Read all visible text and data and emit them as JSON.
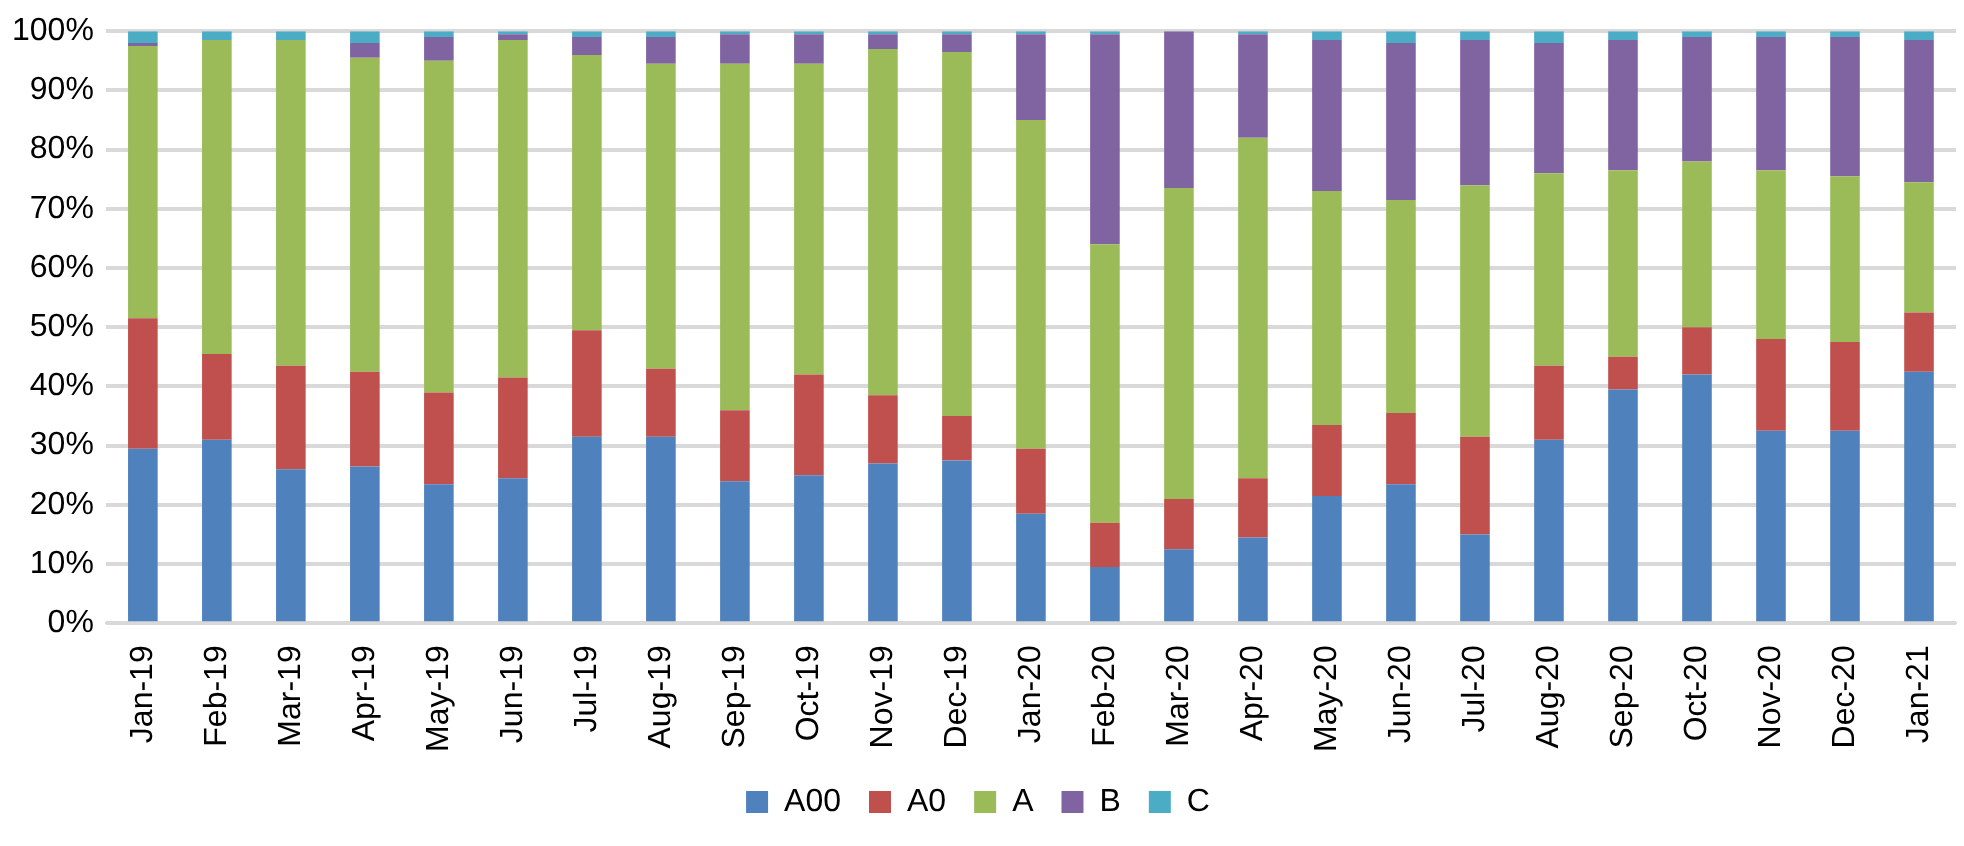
{
  "chart_data": {
    "type": "bar",
    "stacked": true,
    "categories": [
      "Jan-19",
      "Feb-19",
      "Mar-19",
      "Apr-19",
      "May-19",
      "Jun-19",
      "Jul-19",
      "Aug-19",
      "Sep-19",
      "Oct-19",
      "Nov-19",
      "Dec-19",
      "Jan-20",
      "Feb-20",
      "Mar-20",
      "Apr-20",
      "May-20",
      "Jun-20",
      "Jul-20",
      "Aug-20",
      "Sep-20",
      "Oct-20",
      "Nov-20",
      "Dec-20",
      "Jan-21"
    ],
    "series": [
      {
        "name": "A00",
        "color": "#4f81bd",
        "values": [
          29.5,
          31,
          26,
          26.5,
          23.5,
          24.5,
          31.5,
          31.5,
          24,
          25,
          27,
          27.5,
          18.5,
          9.5,
          12.5,
          14.5,
          21.5,
          23.5,
          15,
          31,
          39.5,
          42,
          32.5,
          32.5,
          42.5
        ]
      },
      {
        "name": "A0",
        "color": "#c0504d",
        "values": [
          22,
          14.5,
          17.5,
          16,
          15.5,
          17,
          18,
          11.5,
          12,
          17,
          11.5,
          7.5,
          11,
          7.5,
          8.5,
          10,
          12,
          12,
          16.5,
          12.5,
          5.5,
          8,
          15.5,
          15,
          10
        ]
      },
      {
        "name": "A",
        "color": "#9bbb59",
        "values": [
          46,
          53,
          55,
          53,
          56,
          57,
          46.5,
          51.5,
          58.5,
          52.5,
          58.5,
          61.5,
          55.5,
          47,
          52.5,
          57.5,
          39.5,
          36,
          42.5,
          32.5,
          31.5,
          28,
          28.5,
          28,
          22
        ]
      },
      {
        "name": "B",
        "color": "#8064a2",
        "values": [
          0.5,
          0,
          0,
          2.5,
          4,
          1,
          3,
          4.5,
          5,
          5,
          2.5,
          3,
          14.5,
          35.5,
          26.5,
          17.5,
          25.5,
          26.5,
          24.5,
          22,
          22,
          21,
          22.5,
          23.5,
          24
        ]
      },
      {
        "name": "C",
        "color": "#4bacc6",
        "values": [
          2,
          1.5,
          1.5,
          2,
          1,
          0.5,
          1,
          1,
          0.5,
          0.5,
          0.5,
          0.5,
          0.5,
          0.5,
          0,
          0.5,
          1.5,
          2,
          1.5,
          2,
          1.5,
          1,
          1,
          1,
          1.5
        ]
      }
    ],
    "ylim": [
      0,
      100
    ],
    "yticks": [
      {
        "value": 0,
        "label": "0%"
      },
      {
        "value": 10,
        "label": "10%"
      },
      {
        "value": 20,
        "label": "20%"
      },
      {
        "value": 30,
        "label": "30%"
      },
      {
        "value": 40,
        "label": "40%"
      },
      {
        "value": 50,
        "label": "50%"
      },
      {
        "value": 60,
        "label": "60%"
      },
      {
        "value": 70,
        "label": "70%"
      },
      {
        "value": 80,
        "label": "80%"
      },
      {
        "value": 90,
        "label": "90%"
      },
      {
        "value": 100,
        "label": "100%"
      }
    ],
    "grid": "y",
    "legend": "bottom"
  }
}
